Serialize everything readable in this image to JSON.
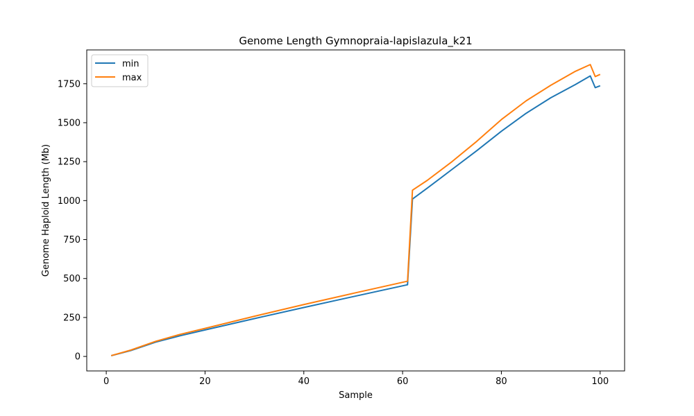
{
  "chart_data": {
    "type": "line",
    "title": "Genome Length Gymnopraia-lapislazula_k21",
    "xlabel": "Sample",
    "ylabel": "Genome Haploid Length (Mb)",
    "xlim": [
      -3.95,
      104.95
    ],
    "ylim": [
      -93,
      1967
    ],
    "xticks": [
      0,
      20,
      40,
      60,
      80,
      100
    ],
    "yticks": [
      0,
      250,
      500,
      750,
      1000,
      1250,
      1500,
      1750
    ],
    "legend_position": "upper-left",
    "series": [
      {
        "name": "min",
        "color": "#1f77b4",
        "x": [
          1,
          5,
          10,
          15,
          20,
          30,
          40,
          50,
          61,
          62,
          65,
          70,
          75,
          80,
          85,
          90,
          95,
          98,
          99,
          100
        ],
        "y": [
          5,
          38,
          92,
          133,
          170,
          243,
          314,
          384,
          460,
          1010,
          1080,
          1200,
          1320,
          1445,
          1560,
          1660,
          1745,
          1800,
          1725,
          1737
        ]
      },
      {
        "name": "max",
        "color": "#ff7f0e",
        "x": [
          1,
          5,
          10,
          15,
          20,
          30,
          40,
          50,
          61,
          62,
          65,
          70,
          75,
          80,
          85,
          90,
          95,
          98,
          99,
          100
        ],
        "y": [
          5,
          41,
          97,
          142,
          180,
          258,
          333,
          405,
          483,
          1067,
          1130,
          1250,
          1380,
          1520,
          1640,
          1740,
          1830,
          1873,
          1796,
          1810
        ]
      }
    ]
  }
}
